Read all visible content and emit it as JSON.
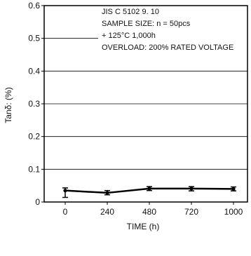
{
  "chart_data": {
    "type": "line",
    "xlabel": "TIME  (h)",
    "ylabel": "Tanδ: (%)",
    "ylim": [
      0,
      0.6
    ],
    "y_ticks": [
      "0",
      "0.1",
      "0.2",
      "0.3",
      "0.4",
      "0.5",
      "0.6"
    ],
    "x_ticks": [
      "0",
      "240",
      "480",
      "720",
      "1000"
    ],
    "grid": "horizontal",
    "series": [
      {
        "x": [
          0,
          240,
          480,
          720,
          1000
        ],
        "values": [
          0.035,
          0.028,
          0.041,
          0.041,
          0.04
        ],
        "error_low": [
          0.014,
          0.022,
          0.035,
          0.034,
          0.034
        ],
        "error_high": [
          0.043,
          0.035,
          0.047,
          0.047,
          0.046
        ]
      }
    ],
    "annotations": [
      "JIS C 5102 9. 10",
      "SAMPLE SIZE: n = 50pcs",
      "+ 125°C 1,000h",
      "OVERLOAD: 200% RATED VOLTAGE"
    ],
    "colors": {
      "line": "#000000",
      "grid": "#000000"
    }
  }
}
